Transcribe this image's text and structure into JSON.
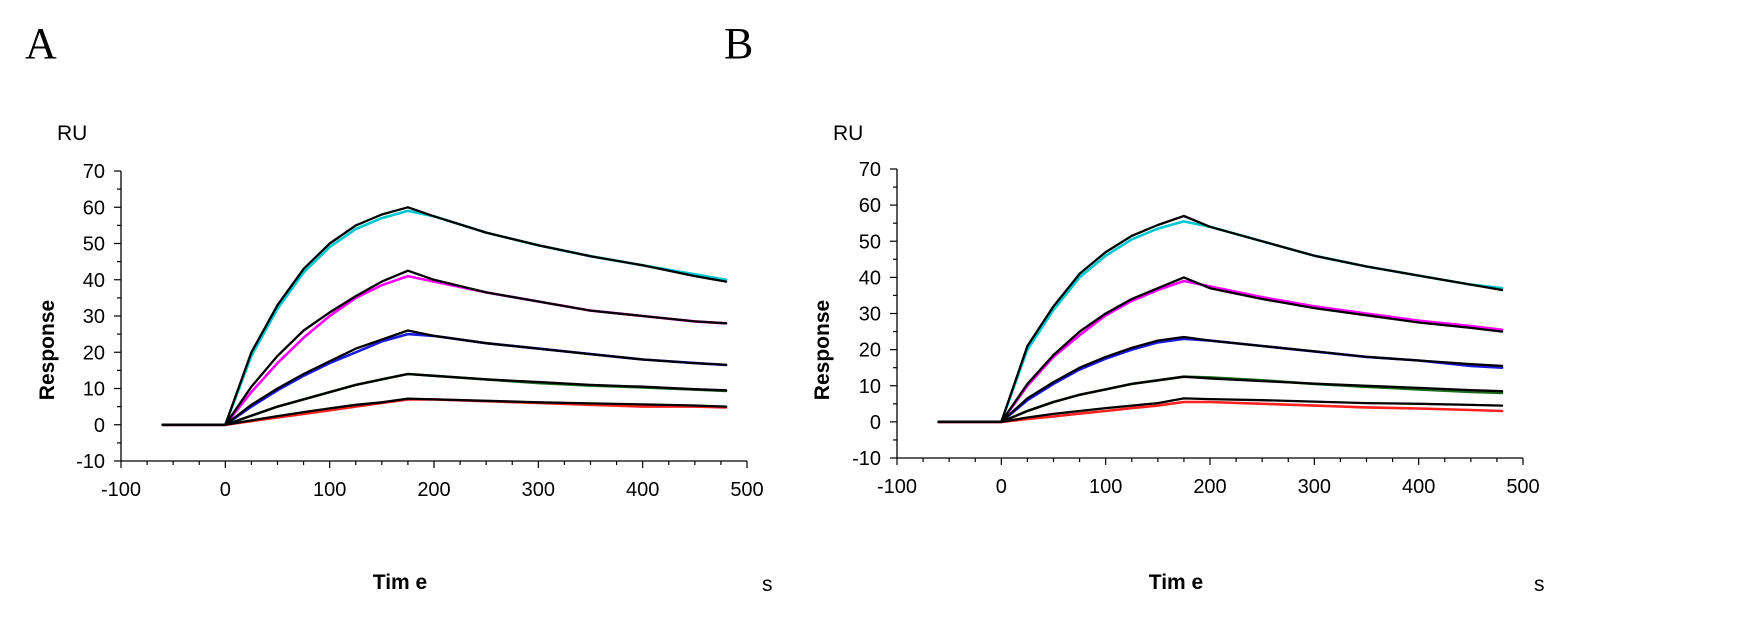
{
  "panels": [
    {
      "label": "A",
      "y_unit": "RU",
      "x_unit": "s",
      "chart_data": {
        "type": "line",
        "xlabel": "Tim e",
        "ylabel": "Response",
        "xlim": [
          -100,
          500
        ],
        "ylim": [
          -10,
          70
        ],
        "xticks": [
          -100,
          0,
          100,
          200,
          300,
          400,
          500
        ],
        "yticks": [
          -10,
          0,
          10,
          20,
          30,
          40,
          50,
          60,
          70
        ],
        "grid": false,
        "fit_color": "#000000",
        "series": [
          {
            "color": "#00c8d0",
            "x": [
              -60,
              0,
              25,
              50,
              75,
              100,
              125,
              150,
              175,
              200,
              250,
              300,
              350,
              400,
              450,
              480
            ],
            "y": [
              0,
              0,
              19,
              32,
              42,
              49,
              54,
              57,
              59,
              57.5,
              53,
              49.5,
              46.5,
              44,
              41.5,
              40
            ],
            "fit": [
              0,
              0,
              20,
              33,
              43,
              50,
              55,
              58,
              60,
              57.5,
              53,
              49.5,
              46.5,
              44,
              41,
              39.5
            ]
          },
          {
            "color": "#ff00ff",
            "x": [
              -60,
              0,
              25,
              50,
              75,
              100,
              125,
              150,
              175,
              200,
              250,
              300,
              350,
              400,
              450,
              480
            ],
            "y": [
              0,
              0,
              9,
              17,
              24,
              30,
              35,
              38.5,
              41,
              39.5,
              36.5,
              34,
              31.5,
              30,
              28.5,
              28
            ],
            "fit": [
              0,
              0,
              10.5,
              19,
              26,
              31,
              35.5,
              39.5,
              42.5,
              40,
              36.5,
              34,
              31.5,
              30,
              28.5,
              28
            ]
          },
          {
            "color": "#1a1ae0",
            "x": [
              -60,
              0,
              25,
              50,
              75,
              100,
              125,
              150,
              175,
              200,
              250,
              300,
              350,
              400,
              450,
              480
            ],
            "y": [
              0,
              0,
              5,
              9.5,
              13.5,
              17,
              20,
              23,
              25,
              24.5,
              22.5,
              21,
              19.5,
              18,
              17,
              16.5
            ],
            "fit": [
              0,
              0,
              5.5,
              10,
              14,
              17.5,
              21,
              23.5,
              26,
              24.5,
              22.5,
              21,
              19.5,
              18,
              17,
              16.5
            ]
          },
          {
            "color": "#1c6b1c",
            "x": [
              -60,
              0,
              25,
              50,
              75,
              100,
              125,
              150,
              175,
              200,
              250,
              300,
              350,
              400,
              450,
              480
            ],
            "y": [
              0,
              0,
              2.5,
              5,
              7,
              9,
              11,
              12.5,
              14,
              13.5,
              12.5,
              11.5,
              10.8,
              10.3,
              9.7,
              9.3
            ],
            "fit": [
              0,
              0,
              2.5,
              5,
              7,
              9,
              11,
              12.5,
              14,
              13.5,
              12.5,
              11.8,
              11,
              10.5,
              9.8,
              9.5
            ]
          },
          {
            "color": "#ff2020",
            "x": [
              -60,
              0,
              25,
              50,
              75,
              100,
              125,
              150,
              175,
              200,
              250,
              300,
              350,
              400,
              450,
              480
            ],
            "y": [
              0,
              0,
              1,
              2,
              3,
              4,
              5,
              6,
              7,
              7,
              6.5,
              6,
              5.5,
              5,
              5,
              4.8
            ],
            "fit": [
              0,
              0,
              1.2,
              2.4,
              3.5,
              4.5,
              5.5,
              6.2,
              7.2,
              7,
              6.6,
              6.2,
              5.9,
              5.6,
              5.3,
              5
            ]
          }
        ]
      }
    },
    {
      "label": "B",
      "y_unit": "RU",
      "x_unit": "s",
      "chart_data": {
        "type": "line",
        "xlabel": "Tim e",
        "ylabel": "Response",
        "xlim": [
          -100,
          500
        ],
        "ylim": [
          -10,
          70
        ],
        "xticks": [
          -100,
          0,
          100,
          200,
          300,
          400,
          500
        ],
        "yticks": [
          -10,
          0,
          10,
          20,
          30,
          40,
          50,
          60,
          70
        ],
        "grid": false,
        "fit_color": "#000000",
        "series": [
          {
            "color": "#00c8d0",
            "x": [
              -60,
              0,
              25,
              50,
              75,
              100,
              125,
              150,
              175,
              200,
              250,
              300,
              350,
              400,
              450,
              480
            ],
            "y": [
              0,
              0,
              20,
              31,
              40,
              46,
              50.5,
              53.5,
              55.5,
              54,
              50,
              46,
              43,
              40.5,
              38,
              37
            ],
            "fit": [
              0,
              0,
              21,
              32,
              41,
              47,
              51.5,
              54.5,
              57,
              54,
              50,
              46,
              43,
              40.5,
              38,
              36.5
            ]
          },
          {
            "color": "#ff00ff",
            "x": [
              -60,
              0,
              25,
              50,
              75,
              100,
              125,
              150,
              175,
              200,
              250,
              300,
              350,
              400,
              450,
              480
            ],
            "y": [
              0,
              0,
              10,
              18,
              24,
              29.5,
              33.5,
              36.5,
              39,
              37.5,
              34.5,
              32,
              30,
              28,
              26.5,
              25.5
            ],
            "fit": [
              0,
              0,
              10.5,
              18.5,
              25,
              30,
              34,
              37,
              40,
              37,
              34,
              31.5,
              29.5,
              27.5,
              26,
              25
            ]
          },
          {
            "color": "#1a1ae0",
            "x": [
              -60,
              0,
              25,
              50,
              75,
              100,
              125,
              150,
              175,
              200,
              250,
              300,
              350,
              400,
              450,
              480
            ],
            "y": [
              0,
              0,
              6,
              10.5,
              14.5,
              17.5,
              20,
              22,
              23,
              22.5,
              21,
              19.5,
              18,
              17,
              15.5,
              15
            ],
            "fit": [
              0,
              0,
              6.5,
              11,
              15,
              18,
              20.5,
              22.5,
              23.5,
              22.5,
              21,
              19.5,
              18,
              17,
              16,
              15.5
            ]
          },
          {
            "color": "#1c6b1c",
            "x": [
              -60,
              0,
              25,
              50,
              75,
              100,
              125,
              150,
              175,
              200,
              250,
              300,
              350,
              400,
              450,
              480
            ],
            "y": [
              0,
              0,
              3,
              5.5,
              7.5,
              9,
              10.5,
              11.5,
              12.5,
              12.3,
              11.5,
              10.5,
              9.7,
              9,
              8.3,
              8
            ],
            "fit": [
              0,
              0,
              3,
              5.5,
              7.5,
              9,
              10.5,
              11.5,
              12.5,
              12,
              11.3,
              10.6,
              10,
              9.4,
              8.8,
              8.5
            ]
          },
          {
            "color": "#ff2020",
            "x": [
              -60,
              0,
              25,
              50,
              75,
              100,
              125,
              150,
              175,
              200,
              250,
              300,
              350,
              400,
              450,
              480
            ],
            "y": [
              0,
              0,
              0.8,
              1.5,
              2.3,
              3,
              3.8,
              4.5,
              5.5,
              5.5,
              5,
              4.5,
              4,
              3.7,
              3.3,
              3
            ],
            "fit": [
              0,
              0,
              1.2,
              2.2,
              3,
              3.8,
              4.5,
              5.2,
              6.5,
              6.3,
              6,
              5.6,
              5.2,
              5,
              4.7,
              4.5
            ]
          }
        ]
      }
    }
  ]
}
